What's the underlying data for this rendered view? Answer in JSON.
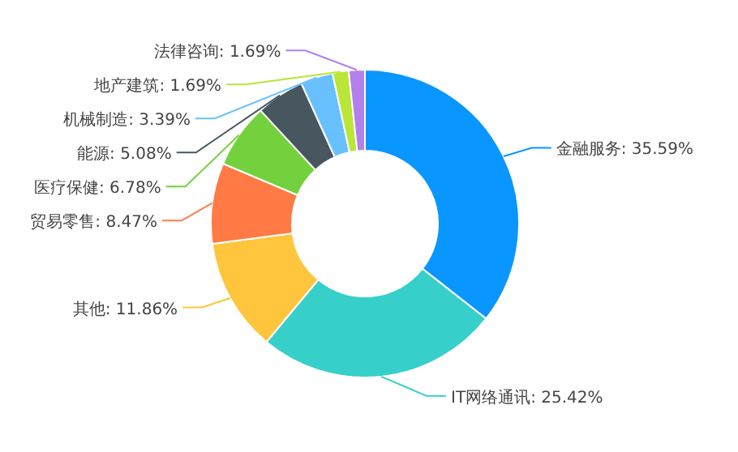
{
  "chart_data": {
    "type": "donut",
    "categories": [
      "金融服务",
      "IT网络通讯",
      "其他",
      "贸易零售",
      "医疗保健",
      "能源",
      "机械制造",
      "地产建筑",
      "法律咨询"
    ],
    "values": [
      35.59,
      25.42,
      11.86,
      8.47,
      6.78,
      5.08,
      3.39,
      1.69,
      1.69
    ],
    "value_labels": [
      "35.59%",
      "25.42%",
      "11.86%",
      "8.47%",
      "6.78%",
      "5.08%",
      "3.39%",
      "1.69%",
      "1.69%"
    ],
    "colors": [
      "#0a96ff",
      "#36cfc9",
      "#ffc53d",
      "#ff7a45",
      "#73d13d",
      "#47565f",
      "#69c0ff",
      "#bae637",
      "#b37feb"
    ]
  }
}
